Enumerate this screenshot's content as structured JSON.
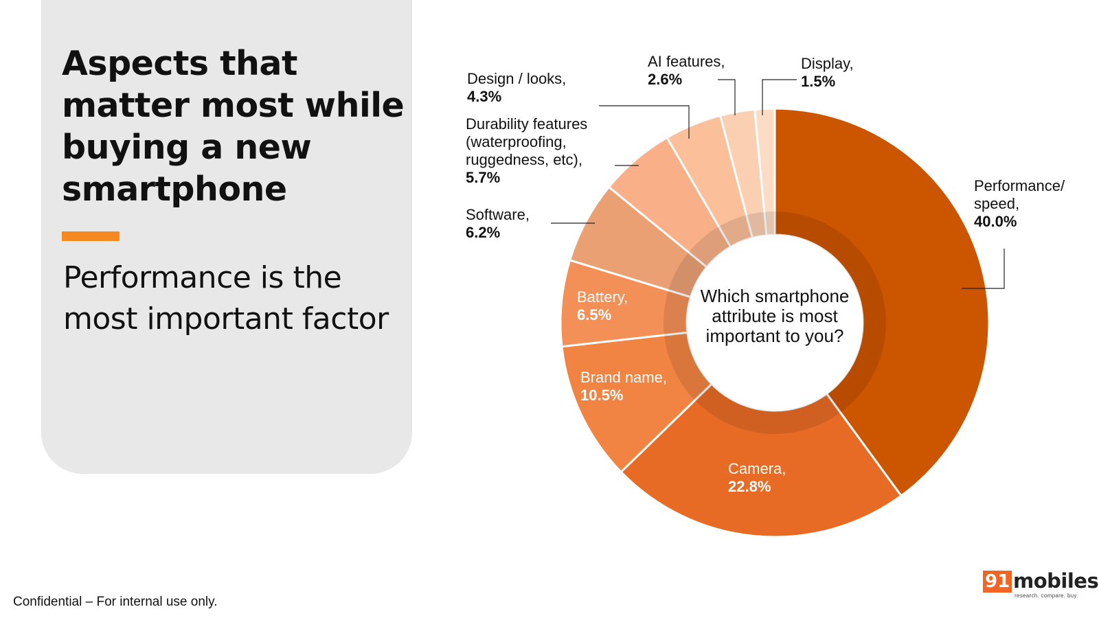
{
  "slide": {
    "title": "Aspects that matter most while buying a new smartphone",
    "subtitle": "Performance is the most important factor",
    "footer": "Confidential – For internal use only.",
    "accent_color": "#f5891f",
    "panel_color": "#e8e8e8"
  },
  "logo": {
    "number": "91",
    "word": "mobiles",
    "tagline": "research. compare. buy.",
    "number_bg": "#f26522"
  },
  "chart_data": {
    "type": "pie",
    "donut": true,
    "center_text": [
      "Which smartphone",
      "attribute is most",
      "important to you?"
    ],
    "unit": "%",
    "slices": [
      {
        "label": "Performance/ speed,",
        "label_lines": [
          "Performance/",
          "speed,"
        ],
        "value": 40.0,
        "display": "40.0%",
        "color": "#cc5500"
      },
      {
        "label": "Camera,",
        "label_lines": [
          "Camera,"
        ],
        "value": 22.8,
        "display": "22.8%",
        "color": "#e86b25"
      },
      {
        "label": "Brand name,",
        "label_lines": [
          "Brand name,"
        ],
        "value": 10.5,
        "display": "10.5%",
        "color": "#f28443"
      },
      {
        "label": "Battery,",
        "label_lines": [
          "Battery,"
        ],
        "value": 6.5,
        "display": "6.5%",
        "color": "#f39057"
      },
      {
        "label": "Software,",
        "label_lines": [
          "Software,"
        ],
        "value": 6.2,
        "display": "6.2%",
        "color": "#eba074"
      },
      {
        "label": "Durability features (waterproofing, ruggedness, etc),",
        "label_lines": [
          "Durability features",
          "(waterproofing,",
          "ruggedness, etc),"
        ],
        "value": 5.7,
        "display": "5.7%",
        "color": "#f9b088"
      },
      {
        "label": "Design / looks,",
        "label_lines": [
          "Design / looks,"
        ],
        "value": 4.3,
        "display": "4.3%",
        "color": "#fbbf99"
      },
      {
        "label": "AI features,",
        "label_lines": [
          "AI features,"
        ],
        "value": 2.6,
        "display": "2.6%",
        "color": "#fbcfb2"
      },
      {
        "label": "Display,",
        "label_lines": [
          "Display,"
        ],
        "value": 1.5,
        "display": "1.5%",
        "color": "#fcdcc5"
      }
    ]
  }
}
